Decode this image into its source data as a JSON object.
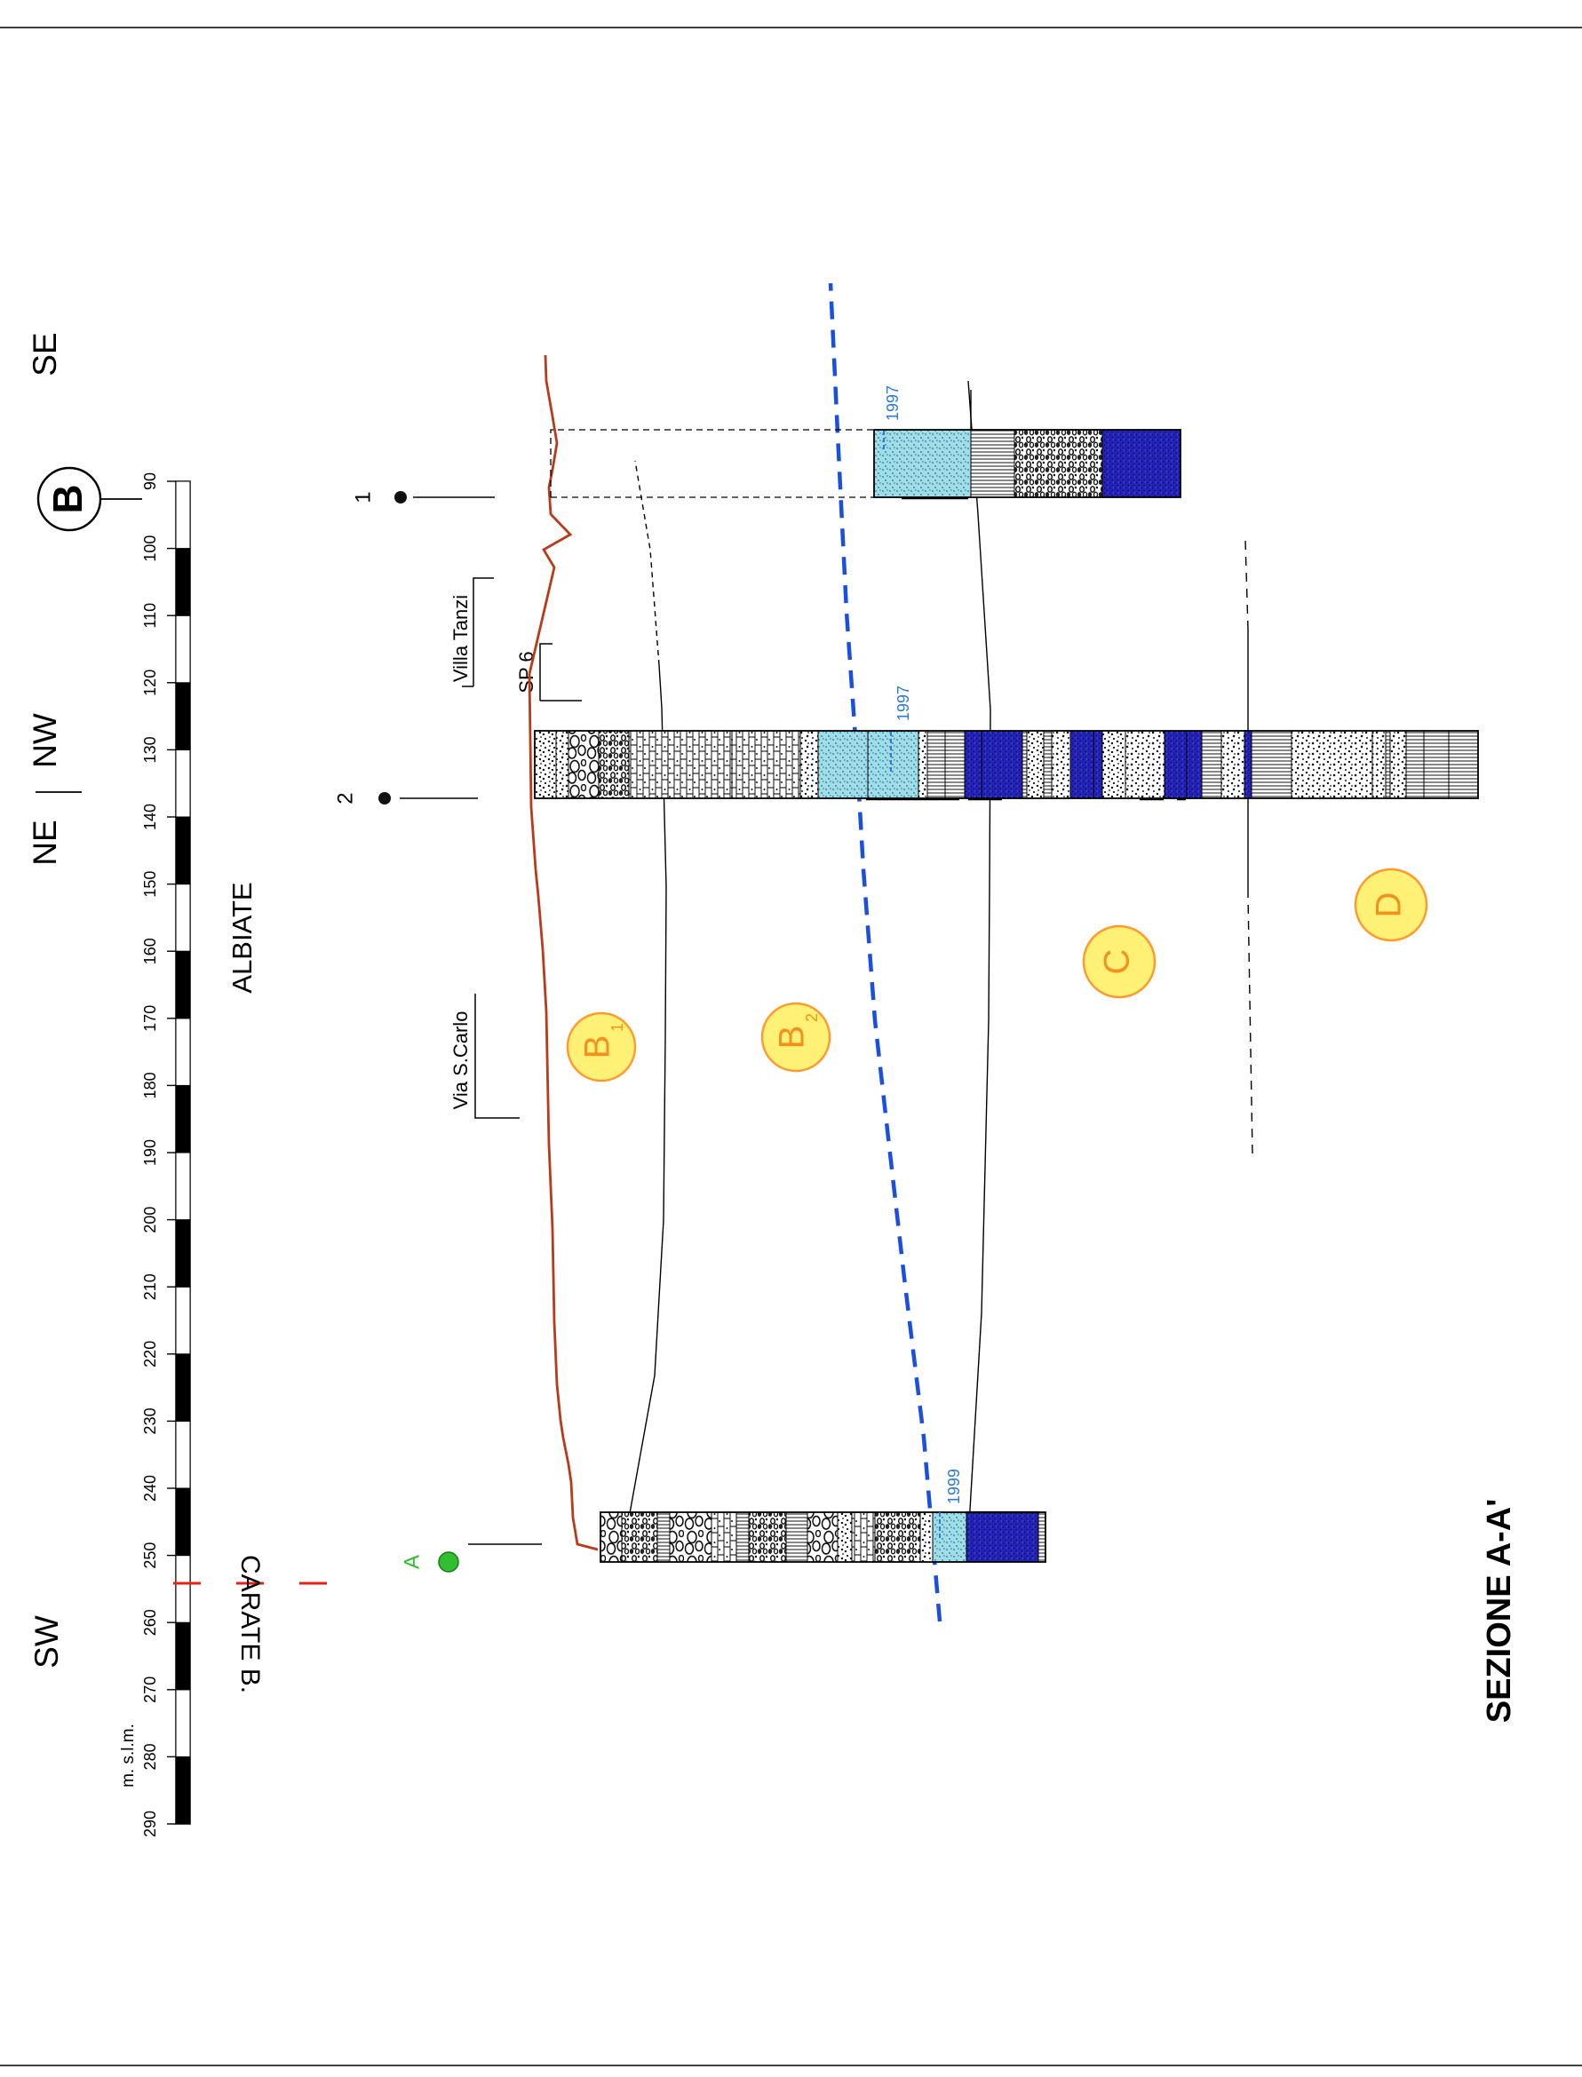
{
  "title": "SEZIONE A-A'",
  "direction_labels": {
    "sw": "SW",
    "se": "SE",
    "ne": "NE",
    "nw": "NW"
  },
  "locality": "ALBIATE",
  "scale": {
    "unit_label": "m. s.l.m.",
    "ticks": [
      "290",
      "280",
      "270",
      "260",
      "250",
      "240",
      "230",
      "220",
      "210",
      "200",
      "190",
      "180",
      "170",
      "160",
      "150",
      "140",
      "130",
      "120",
      "110",
      "100",
      "90"
    ]
  },
  "wells": {
    "a": {
      "label": "A",
      "water_year": "1999"
    },
    "two": {
      "label": "2",
      "water_year": "1997"
    },
    "one": {
      "label": "1",
      "water_year": "1997"
    }
  },
  "section_marker": {
    "letter": "B"
  },
  "places": {
    "via": "Via S.Carlo",
    "villa": "Villa Tanzi",
    "road": "SP 6"
  },
  "boundary_label": "CARATE B.",
  "units": [
    {
      "letter": "B",
      "sub": "1"
    },
    {
      "letter": "B",
      "sub": "2"
    },
    {
      "letter": "C",
      "sub": ""
    },
    {
      "letter": "D",
      "sub": ""
    }
  ],
  "colors": {
    "topography": "#b83a1a",
    "water_table": "#1a4fe0",
    "water_level_text": "#2a7ad6",
    "aquifer_light": "#9fdde9",
    "aquifer_dark": "#2323b8",
    "unit_circle_fill": "#fff176",
    "unit_circle_stroke": "#ff9a2e",
    "unit_text": "#f4901e",
    "well_a": "#2fbf2f",
    "boundary": "#e8201a"
  }
}
